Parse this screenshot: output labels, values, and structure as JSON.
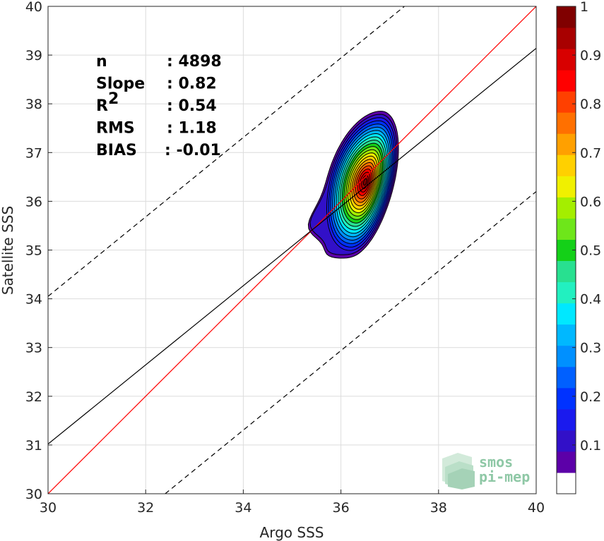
{
  "chart_data": {
    "type": "contour-density-scatter",
    "xlabel": "Argo SSS",
    "ylabel": "Satellite SSS",
    "xlim": [
      30,
      40
    ],
    "ylim": [
      30,
      40
    ],
    "x_ticks": [
      "30",
      "32",
      "34",
      "36",
      "38",
      "40"
    ],
    "y_ticks": [
      "30",
      "31",
      "32",
      "33",
      "34",
      "35",
      "36",
      "37",
      "38",
      "39",
      "40"
    ],
    "grid": true,
    "density_peak": {
      "x": 36.5,
      "y": 36.4
    },
    "density_extent": {
      "x": [
        35.7,
        37.1
      ],
      "y": [
        34.85,
        37.85
      ]
    },
    "lines": [
      {
        "name": "one-to-one",
        "color": "#ff0000",
        "style": "solid",
        "x": [
          30,
          40
        ],
        "y": [
          30,
          40
        ]
      },
      {
        "name": "regression",
        "color": "#000000",
        "style": "solid",
        "x": [
          30,
          40
        ],
        "y": [
          31.02,
          39.14
        ]
      },
      {
        "name": "upper-bound",
        "color": "#000000",
        "style": "dashed",
        "x": [
          30,
          37.3
        ],
        "y": [
          34.05,
          40
        ]
      },
      {
        "name": "lower-bound",
        "color": "#000000",
        "style": "dashed",
        "x": [
          32.4,
          40
        ],
        "y": [
          30,
          36.2
        ]
      }
    ],
    "stats": [
      {
        "label": "n",
        "value": ": 4898"
      },
      {
        "label": "Slope",
        "value": ": 0.82"
      },
      {
        "label": "R",
        "sup": "2",
        "value": ": 0.54"
      },
      {
        "label": "RMS",
        "value": ": 1.18"
      },
      {
        "label": "BIAS",
        "value": ": -0.01"
      }
    ],
    "colorbar": {
      "range": [
        0,
        1
      ],
      "tick_labels": [
        "0.1",
        "0.2",
        "0.3",
        "0.4",
        "0.5",
        "0.6",
        "0.7",
        "0.8",
        "0.9",
        "1"
      ],
      "colors": [
        "#ffffff",
        "#5c00a8",
        "#3210c8",
        "#1a1aee",
        "#0032ff",
        "#0060ff",
        "#0090ff",
        "#00b8ff",
        "#00e8ff",
        "#22f0c0",
        "#28e090",
        "#14d018",
        "#6ee61a",
        "#a4ee00",
        "#f0f000",
        "#ffd000",
        "#ffa000",
        "#ff7000",
        "#ff4000",
        "#ff0000",
        "#d80000",
        "#a80000",
        "#800000"
      ]
    }
  },
  "logo": {
    "line1": "smos",
    "line2": "pi-mep"
  }
}
